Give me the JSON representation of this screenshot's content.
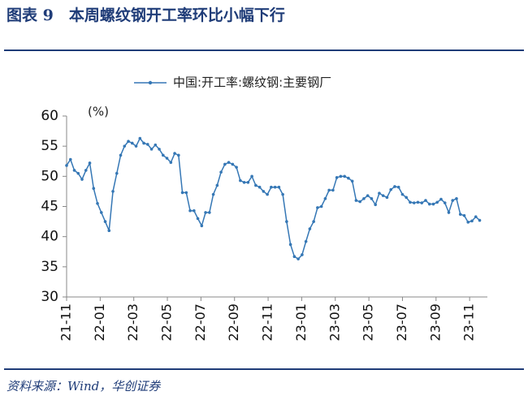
{
  "title": "图表 9　本周螺纹钢开工率环比小幅下行",
  "source": "资料来源：Wind，华创证券",
  "chart_data": {
    "type": "line",
    "annotation": "(%)",
    "series": [
      {
        "name": "中国:开工率:螺纹钢:主要钢厂",
        "color": "#3577b5",
        "values": [
          51.8,
          52.8,
          51,
          50.5,
          49.5,
          51,
          52.2,
          48,
          45.5,
          44,
          42.5,
          41,
          47.5,
          50.5,
          53.5,
          55,
          55.8,
          55.5,
          55,
          56.3,
          55.5,
          55.3,
          54.5,
          55.2,
          54.5,
          53.5,
          53,
          52.3,
          53.8,
          53.5,
          47.3,
          47.3,
          44.3,
          44.3,
          43,
          41.8,
          44,
          44,
          47,
          48.5,
          50.7,
          52,
          52.3,
          52,
          51.5,
          49.3,
          49,
          49,
          50,
          48.5,
          48.2,
          47.5,
          47,
          48.2,
          48.2,
          48.2,
          47,
          42.5,
          38.7,
          36.7,
          36.3,
          37,
          39.2,
          41.3,
          42.5,
          44.8,
          45,
          46.3,
          47.7,
          47.7,
          49.8,
          50,
          50,
          49.7,
          49.2,
          46,
          45.8,
          46.3,
          46.8,
          46.3,
          45.3,
          47.2,
          46.8,
          46.5,
          47.8,
          48.3,
          48.2,
          47,
          46.5,
          45.7,
          45.6,
          45.7,
          45.6,
          46,
          45.4,
          45.4,
          45.7,
          46.2,
          45.6,
          44,
          46,
          46.3,
          43.7,
          43.5,
          42.4,
          42.6,
          43.3,
          42.7
        ]
      }
    ],
    "x": [
      0,
      1,
      2,
      3,
      4,
      5,
      6,
      7,
      8,
      9,
      10,
      11,
      12,
      13,
      14,
      15,
      16,
      17,
      18,
      19,
      20,
      21,
      22,
      23,
      24,
      25,
      26,
      27,
      28,
      29,
      30,
      31,
      32,
      33,
      34,
      35,
      36,
      37,
      38,
      39,
      40,
      41,
      42,
      43,
      44,
      45,
      46,
      47,
      48,
      49,
      50,
      51,
      52,
      53,
      54,
      55,
      56,
      57,
      58,
      59,
      60,
      61,
      62,
      63,
      64,
      65,
      66,
      67,
      68,
      69,
      70,
      71,
      72,
      73,
      74,
      75,
      76,
      77,
      78,
      79,
      80,
      81,
      82,
      83,
      84,
      85,
      86,
      87,
      88,
      89,
      90,
      91,
      92,
      93,
      94,
      95,
      96,
      97,
      98,
      99,
      100,
      101,
      102,
      103,
      104,
      105,
      106,
      107
    ],
    "xlim": [
      0,
      109
    ],
    "xticks": [
      {
        "value": 0,
        "label": "21-11"
      },
      {
        "value": 8.7,
        "label": "22-01"
      },
      {
        "value": 17.4,
        "label": "22-03"
      },
      {
        "value": 26.1,
        "label": "22-05"
      },
      {
        "value": 34.8,
        "label": "22-07"
      },
      {
        "value": 43.5,
        "label": "22-09"
      },
      {
        "value": 52.2,
        "label": "22-11"
      },
      {
        "value": 60.9,
        "label": "23-01"
      },
      {
        "value": 69.6,
        "label": "23-03"
      },
      {
        "value": 78.3,
        "label": "23-05"
      },
      {
        "value": 87,
        "label": "23-07"
      },
      {
        "value": 95.7,
        "label": "23-09"
      },
      {
        "value": 104.4,
        "label": "23-11"
      }
    ],
    "ylim": [
      30,
      60
    ],
    "yticks": [
      30,
      35,
      40,
      45,
      50,
      55,
      60
    ],
    "legend": "top"
  }
}
